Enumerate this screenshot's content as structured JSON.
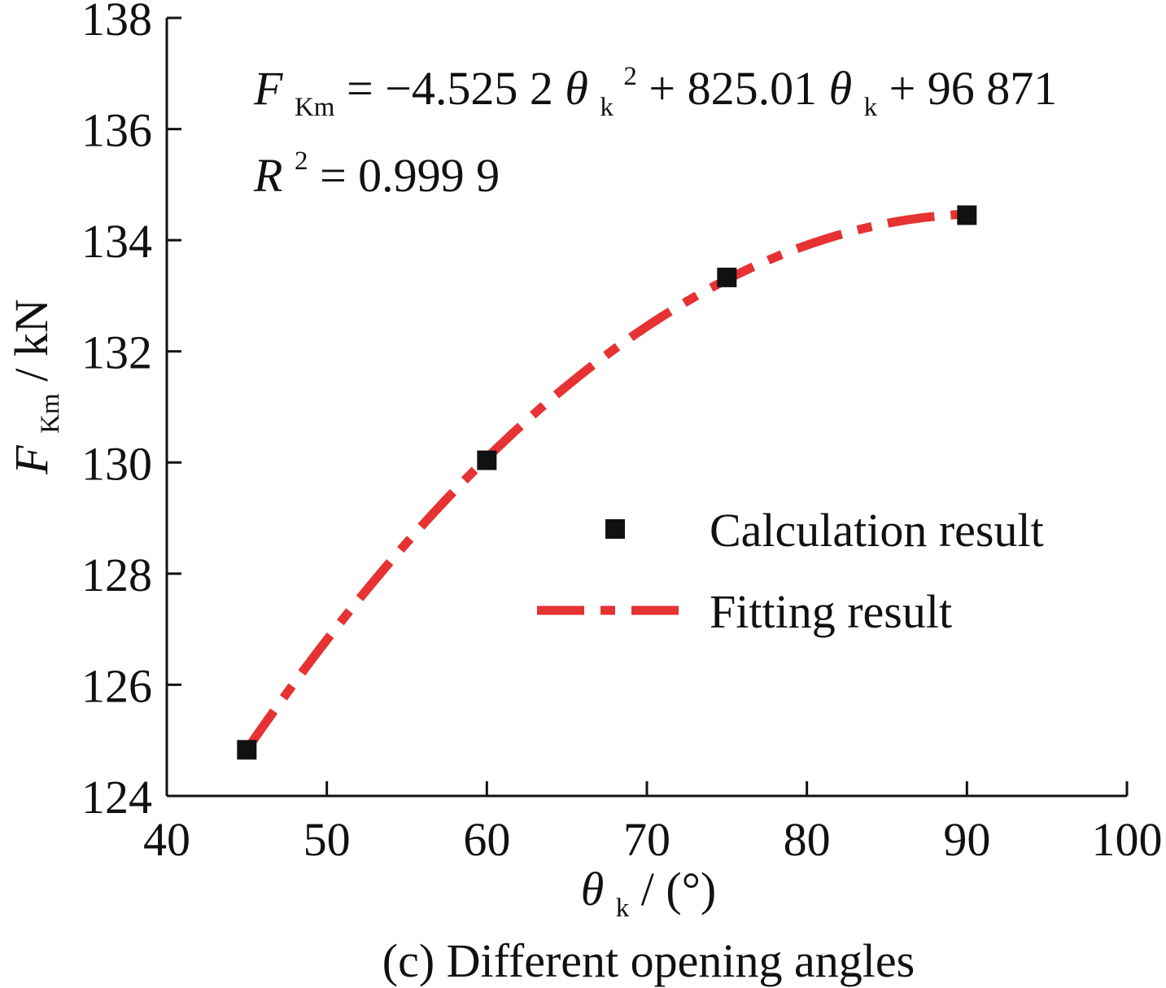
{
  "chart_data": {
    "type": "scatter",
    "title": "",
    "caption": "(c) Different opening angles",
    "xlabel": {
      "symbol": "θ",
      "subscript": "k",
      "rest": " / (°)"
    },
    "ylabel": {
      "symbol": "F",
      "subscript": "Km",
      "rest": " / kN"
    },
    "xlim": [
      40,
      100
    ],
    "ylim": [
      124,
      138
    ],
    "x_ticks": [
      40,
      50,
      60,
      70,
      80,
      90,
      100
    ],
    "y_ticks": [
      124,
      126,
      128,
      130,
      132,
      134,
      136,
      138
    ],
    "grid": false,
    "legend_position": "right",
    "series": [
      {
        "name": "Calculation result",
        "kind": "scatter",
        "marker": "square",
        "color": "#111111",
        "points": [
          {
            "x": 45,
            "y": 124.83
          },
          {
            "x": 60,
            "y": 130.04
          },
          {
            "x": 75,
            "y": 133.33
          },
          {
            "x": 90,
            "y": 134.45
          }
        ]
      },
      {
        "name": "Fitting result",
        "kind": "line",
        "style": "dash-dot",
        "color": "#e63232",
        "equation": {
          "a": -4.5252,
          "b": 825.01,
          "c": 96871,
          "unit_divisor": 1000
        },
        "x_range": [
          45,
          90
        ]
      }
    ],
    "annotations": {
      "equation": {
        "lhs_symbol": "F",
        "lhs_subscript": "Km",
        "eq_part1": " = −4.525 2",
        "var1_symbol": "θ",
        "var1_subscript": "k",
        "var1_superscript": "2",
        "eq_part2": " + 825.01",
        "var2_symbol": "θ",
        "var2_subscript": "k",
        "eq_part3": " + 96 871"
      },
      "r2": {
        "symbol": "R",
        "superscript": "2",
        "text": " = 0.999 9"
      }
    }
  },
  "colors": {
    "axis": "#111111",
    "marker": "#111111",
    "fit_line": "#e63232"
  }
}
